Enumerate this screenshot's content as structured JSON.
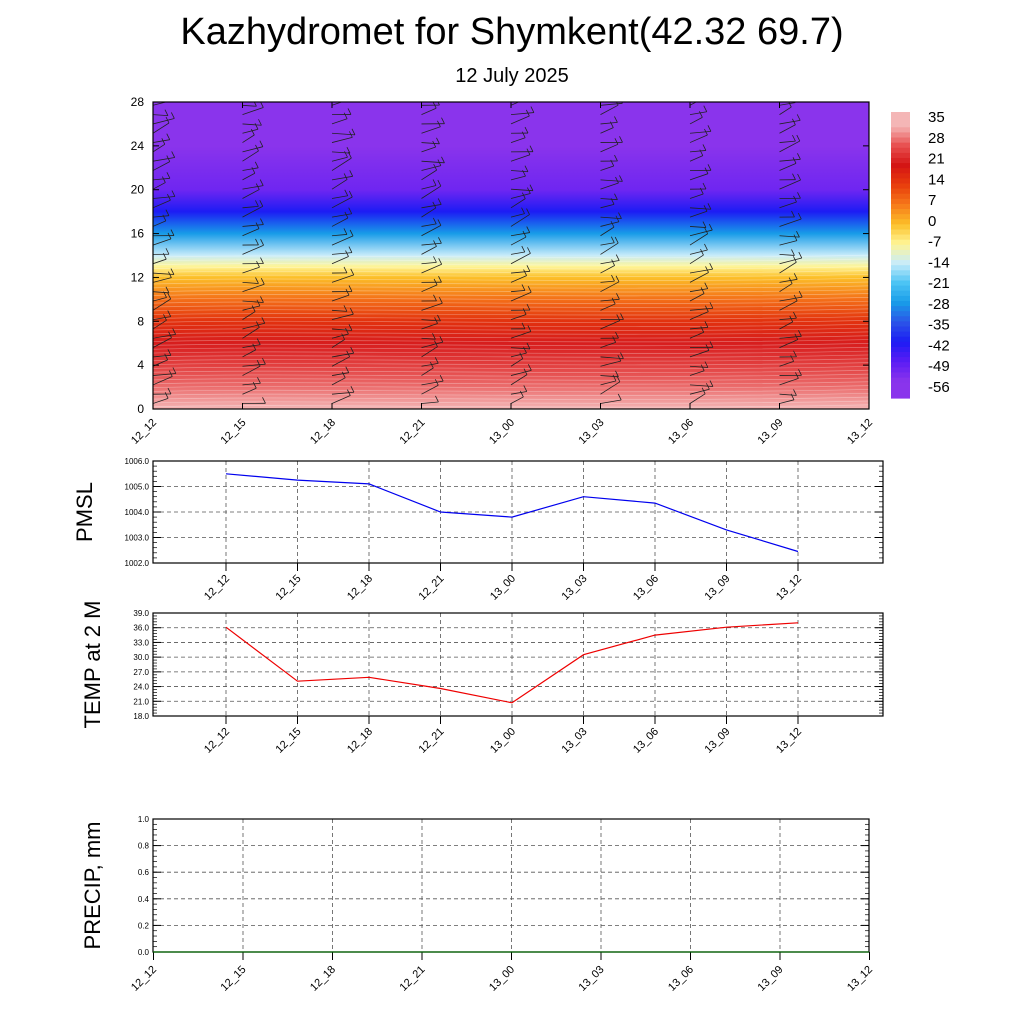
{
  "title": "Kazhydromet for Shymkent(42.32 69.7)",
  "subtitle": "12 July 2025",
  "colors": {
    "pmsl_line": "#0000ee",
    "temp_line": "#ee0000",
    "precip_line": "#006400"
  },
  "chart_data": [
    {
      "name": "cross-section",
      "type": "heatmap",
      "x_labels": [
        "12_12",
        "12_15",
        "12_18",
        "12_21",
        "13_00",
        "13_03",
        "13_06",
        "13_09",
        "13_12"
      ],
      "y_ticks": [
        0,
        4,
        8,
        12,
        16,
        20,
        24,
        28
      ],
      "ylim": [
        0,
        28
      ],
      "colorbar_labels": [
        "35",
        "28",
        "21",
        "14",
        "7",
        "0",
        "-7",
        "-14",
        "-21",
        "-28",
        "-35",
        "-42",
        "-49",
        "-56"
      ],
      "colorbar_colors": [
        "#f4b6b6",
        "#e85050",
        "#d41414",
        "#e83c0c",
        "#f6781a",
        "#fcbf28",
        "#fff596",
        "#c8ecfa",
        "#4cc4f4",
        "#189ce8",
        "#2b55e8",
        "#1c1cf4",
        "#5a1cf4",
        "#8a34ec"
      ],
      "level_temperatures": [
        {
          "y": 0,
          "t": 35
        },
        {
          "y": 2,
          "t": 30
        },
        {
          "y": 4,
          "t": 26
        },
        {
          "y": 6,
          "t": 22
        },
        {
          "y": 8,
          "t": 16
        },
        {
          "y": 10,
          "t": 8
        },
        {
          "y": 12,
          "t": 0
        },
        {
          "y": 13,
          "t": -7
        },
        {
          "y": 14,
          "t": -14
        },
        {
          "y": 16,
          "t": -28
        },
        {
          "y": 18,
          "t": -42
        },
        {
          "y": 20,
          "t": -52
        },
        {
          "y": 22,
          "t": -54
        },
        {
          "y": 24,
          "t": -56
        },
        {
          "y": 28,
          "t": -56
        }
      ],
      "grid": false
    },
    {
      "name": "pmsl",
      "type": "line",
      "ylabel": "PMSL",
      "x_labels": [
        "12_12",
        "12_15",
        "12_18",
        "12_21",
        "13_00",
        "13_03",
        "13_06",
        "13_09",
        "13_12"
      ],
      "y_ticks": [
        "1002.0",
        "1003.0",
        "1004.0",
        "1005.0",
        "1006.0"
      ],
      "ylim": [
        1002.0,
        1006.0
      ],
      "values": [
        1005.5,
        1005.25,
        1005.1,
        1004.0,
        1003.8,
        1004.6,
        1004.35,
        1003.3,
        1002.45
      ],
      "grid": true
    },
    {
      "name": "temp",
      "type": "line",
      "ylabel": "TEMP at 2 M",
      "x_labels": [
        "12_12",
        "12_15",
        "12_18",
        "12_21",
        "13_00",
        "13_03",
        "13_06",
        "13_09",
        "13_12"
      ],
      "y_ticks": [
        "18.0",
        "21.0",
        "24.0",
        "27.0",
        "30.0",
        "33.0",
        "36.0",
        "39.0"
      ],
      "ylim": [
        18.0,
        39.0
      ],
      "values": [
        36.1,
        25.1,
        25.9,
        23.6,
        20.7,
        30.5,
        34.5,
        36.1,
        37.0
      ],
      "grid": true
    },
    {
      "name": "precip",
      "type": "line",
      "ylabel": "PRECIP, mm",
      "x_labels": [
        "12_12",
        "12_15",
        "12_18",
        "12_21",
        "13_00",
        "13_03",
        "13_06",
        "13_09",
        "13_12"
      ],
      "y_ticks": [
        "0.0",
        "0.2",
        "0.4",
        "0.6",
        "0.8",
        "1.0"
      ],
      "ylim": [
        0.0,
        1.0
      ],
      "values": [
        0,
        0,
        0,
        0,
        0,
        0,
        0,
        0,
        0
      ],
      "grid": true
    }
  ]
}
